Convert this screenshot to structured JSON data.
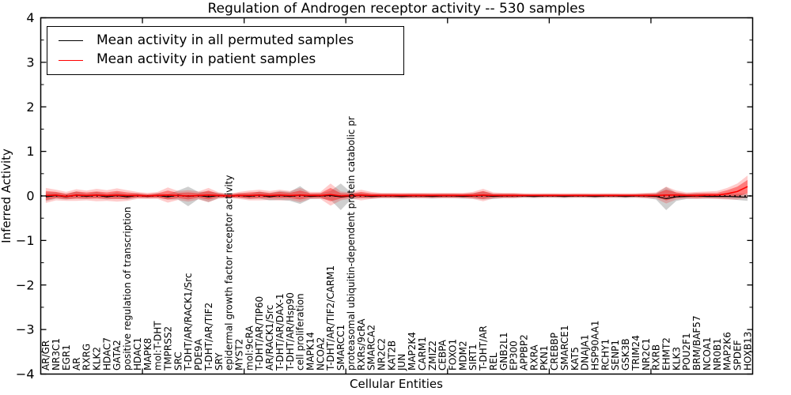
{
  "figure": {
    "title": "Regulation of Androgen receptor activity -- 530 samples",
    "xlabel": "Cellular Entities",
    "ylabel": "Inferred Activity"
  },
  "legend": {
    "items": [
      {
        "label": "Mean activity in all permuted samples",
        "color": "#000000"
      },
      {
        "label": "Mean activity in patient samples",
        "color": "#ff0000"
      }
    ]
  },
  "chart_data": {
    "type": "line",
    "title": "Regulation of Androgen receptor activity -- 530 samples",
    "xlabel": "Cellular Entities",
    "ylabel": "Inferred Activity",
    "ylim": [
      -4,
      4
    ],
    "yticks": [
      -4,
      -3,
      -2,
      -1,
      0,
      1,
      2,
      3,
      4
    ],
    "x_major_tick_step": 10,
    "grid": false,
    "legend_position": "upper left",
    "zero_line": {
      "style": "dotted",
      "color": "#000000",
      "y": 0
    },
    "categories": [
      "AR/GR",
      "NR3C1",
      "EGR1",
      "AR",
      "RXRG",
      "KLK2",
      "HDAC7",
      "GATA2",
      "positive regulation of transcription",
      "HDAC1",
      "MAPK8",
      "mol:T-DHT",
      "TMPRSS2",
      "SRC",
      "T-DHT/AR/RACK1/Src",
      "PDE9A",
      "T-DHT/AR/TIF2",
      "SRY",
      "epidermal growth factor receptor activity",
      "MYST2",
      "mol:9cRA",
      "T-DHT/AR/TIP60",
      "AR/RACK1/Src",
      "T-DHT/AR/DAX-1",
      "T-DHT/AR/Hsp90",
      "cell proliferation",
      "MAPK14",
      "NCOA2",
      "T-DHT/AR/TIF2/CARM1",
      "SMARCC1",
      "proteasomal ubiquitin-dependent protein catabolic pr",
      "RXRs/9cRA",
      "SMARCA2",
      "NR2C2",
      "KAT2B",
      "JUN",
      "MAP2K4",
      "CARM1",
      "ZMIZ2",
      "CEBPA",
      "FOXO1",
      "MDM2",
      "SIRT1",
      "T-DHT/AR",
      "REL",
      "GNB2L1",
      "EP300",
      "APPBP2",
      "RXRA",
      "PKN1",
      "CREBBP",
      "SMARCE1",
      "KAT5",
      "DNAJA1",
      "HSP90AA1",
      "RCHY1",
      "SENP1",
      "GSK3B",
      "TRIM24",
      "NR2C1",
      "RXRB",
      "EHMT2",
      "KLK3",
      "POU2F1",
      "BRM/BAF57",
      "NCOA1",
      "NR0B1",
      "MAP2K6",
      "SPDEF",
      "HOXB13"
    ],
    "series": [
      {
        "name": "Mean activity in all permuted samples",
        "color": "#000000",
        "line_width": 1.2,
        "band_fill": "rgba(130,130,130,0.38)",
        "values": [
          -0.02,
          0.01,
          -0.02,
          0.02,
          -0.01,
          0.02,
          -0.02,
          0.01,
          -0.02,
          0.01,
          -0.01,
          0.01,
          -0.02,
          0.02,
          -0.01,
          0.01,
          -0.02,
          0.01,
          0.0,
          0.01,
          -0.01,
          0.02,
          -0.02,
          0.01,
          -0.01,
          0.02,
          -0.01,
          0.0,
          0.01,
          -0.02,
          0.0,
          0.01,
          -0.01,
          0.0,
          0.0,
          -0.01,
          0.0,
          0.0,
          -0.01,
          0.0,
          0.0,
          -0.01,
          0.0,
          0.01,
          -0.01,
          0.0,
          0.0,
          0.0,
          -0.01,
          0.0,
          0.0,
          -0.01,
          0.0,
          0.0,
          -0.01,
          0.0,
          0.0,
          -0.01,
          0.0,
          0.0,
          -0.01,
          -0.06,
          -0.02,
          -0.01,
          0.0,
          -0.01,
          -0.01,
          -0.01,
          -0.02,
          -0.03
        ],
        "band_halfwidth": [
          0.1,
          0.07,
          0.06,
          0.08,
          0.06,
          0.07,
          0.06,
          0.07,
          0.06,
          0.05,
          0.04,
          0.05,
          0.06,
          0.1,
          0.22,
          0.08,
          0.12,
          0.06,
          0.04,
          0.05,
          0.06,
          0.08,
          0.08,
          0.1,
          0.1,
          0.2,
          0.06,
          0.06,
          0.1,
          0.3,
          0.08,
          0.06,
          0.05,
          0.05,
          0.05,
          0.05,
          0.05,
          0.05,
          0.05,
          0.05,
          0.05,
          0.05,
          0.06,
          0.09,
          0.06,
          0.05,
          0.05,
          0.04,
          0.04,
          0.04,
          0.04,
          0.04,
          0.04,
          0.04,
          0.04,
          0.04,
          0.04,
          0.04,
          0.04,
          0.05,
          0.07,
          0.26,
          0.09,
          0.06,
          0.06,
          0.05,
          0.05,
          0.06,
          0.07,
          0.08
        ]
      },
      {
        "name": "Mean activity in patient samples",
        "color": "#ff0000",
        "line_width": 1.6,
        "band_inner_fill": "rgba(255,0,0,0.40)",
        "band_outer_fill": "rgba(255,0,0,0.20)",
        "values": [
          0.01,
          0.02,
          -0.01,
          0.02,
          0.01,
          0.02,
          0.01,
          0.02,
          0.01,
          0.01,
          0.0,
          0.01,
          0.02,
          0.01,
          0.0,
          0.01,
          0.02,
          0.01,
          0.0,
          0.01,
          0.01,
          0.02,
          0.01,
          0.02,
          0.01,
          0.02,
          0.01,
          0.01,
          0.03,
          0.0,
          0.01,
          0.02,
          0.01,
          0.01,
          0.01,
          0.01,
          0.01,
          0.01,
          0.01,
          0.01,
          0.01,
          0.01,
          0.01,
          0.02,
          0.01,
          0.01,
          0.01,
          0.01,
          0.01,
          0.01,
          0.01,
          0.01,
          0.01,
          0.01,
          0.01,
          0.01,
          0.01,
          0.01,
          0.01,
          0.01,
          0.01,
          0.02,
          0.02,
          0.01,
          0.01,
          0.02,
          0.02,
          0.05,
          0.1,
          0.21
        ],
        "band_inner_halfwidth": [
          0.1,
          0.07,
          0.06,
          0.08,
          0.07,
          0.08,
          0.07,
          0.09,
          0.07,
          0.05,
          0.04,
          0.05,
          0.1,
          0.06,
          0.08,
          0.05,
          0.1,
          0.04,
          0.03,
          0.05,
          0.07,
          0.07,
          0.06,
          0.07,
          0.06,
          0.1,
          0.05,
          0.05,
          0.15,
          0.06,
          0.04,
          0.07,
          0.05,
          0.04,
          0.04,
          0.04,
          0.04,
          0.04,
          0.04,
          0.04,
          0.04,
          0.04,
          0.05,
          0.09,
          0.04,
          0.04,
          0.04,
          0.03,
          0.03,
          0.03,
          0.03,
          0.03,
          0.03,
          0.03,
          0.03,
          0.03,
          0.03,
          0.03,
          0.03,
          0.04,
          0.04,
          0.12,
          0.06,
          0.04,
          0.05,
          0.05,
          0.05,
          0.08,
          0.11,
          0.15
        ],
        "band_outer_halfwidth": [
          0.17,
          0.12,
          0.1,
          0.13,
          0.11,
          0.14,
          0.12,
          0.15,
          0.12,
          0.08,
          0.07,
          0.08,
          0.17,
          0.1,
          0.13,
          0.09,
          0.16,
          0.07,
          0.05,
          0.08,
          0.11,
          0.12,
          0.1,
          0.12,
          0.1,
          0.16,
          0.08,
          0.08,
          0.25,
          0.1,
          0.07,
          0.12,
          0.08,
          0.06,
          0.06,
          0.06,
          0.06,
          0.06,
          0.06,
          0.06,
          0.06,
          0.06,
          0.08,
          0.14,
          0.07,
          0.06,
          0.06,
          0.05,
          0.05,
          0.05,
          0.05,
          0.05,
          0.05,
          0.05,
          0.05,
          0.05,
          0.05,
          0.05,
          0.05,
          0.06,
          0.07,
          0.19,
          0.1,
          0.07,
          0.08,
          0.08,
          0.09,
          0.13,
          0.18,
          0.25
        ]
      }
    ]
  }
}
